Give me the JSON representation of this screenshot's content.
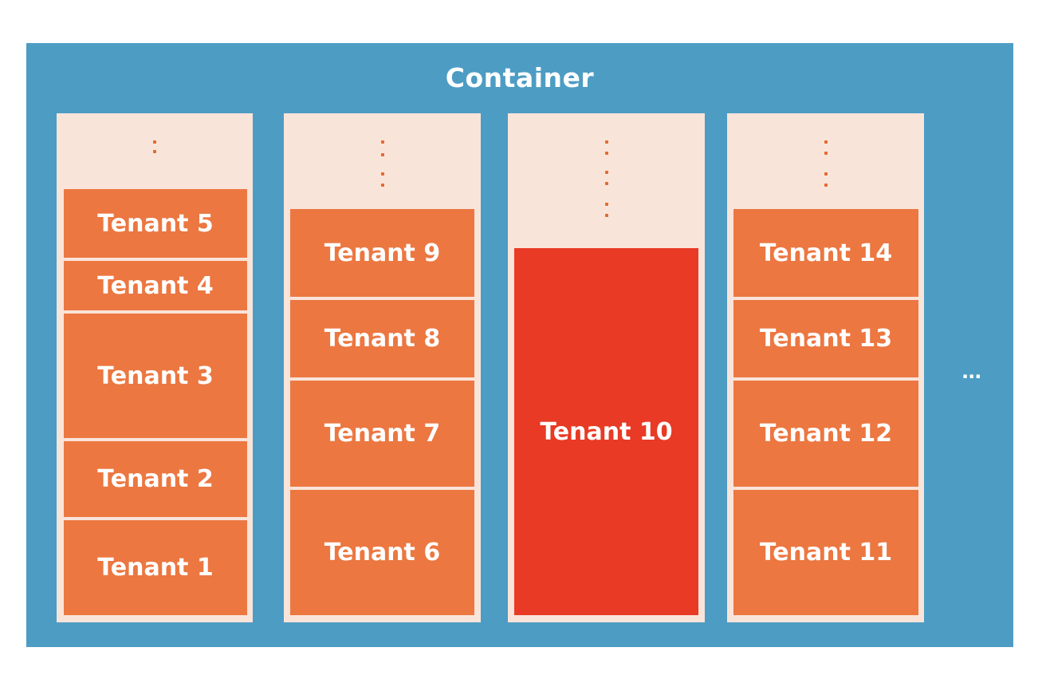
{
  "container": {
    "title": "Container",
    "background": "#4d9cc4",
    "more_indicator": "..."
  },
  "colors": {
    "column_background": "#f9e4da",
    "tenant": "#ec7741",
    "tenant_highlight": "#e83a25",
    "dots": "#e36a2c",
    "text": "#ffffff"
  },
  "columns": [
    {
      "tenants": [
        {
          "label": "Tenant 5"
        },
        {
          "label": "Tenant 4"
        },
        {
          "label": "Tenant 3"
        },
        {
          "label": "Tenant 2"
        },
        {
          "label": "Tenant 1"
        }
      ]
    },
    {
      "tenants": [
        {
          "label": "Tenant 9"
        },
        {
          "label": "Tenant 8"
        },
        {
          "label": "Tenant 7"
        },
        {
          "label": "Tenant 6"
        }
      ]
    },
    {
      "tenants": [
        {
          "label": "Tenant 10",
          "highlighted": true
        }
      ]
    },
    {
      "tenants": [
        {
          "label": "Tenant 14"
        },
        {
          "label": "Tenant 13"
        },
        {
          "label": "Tenant 12"
        },
        {
          "label": "Tenant 11"
        }
      ]
    }
  ]
}
